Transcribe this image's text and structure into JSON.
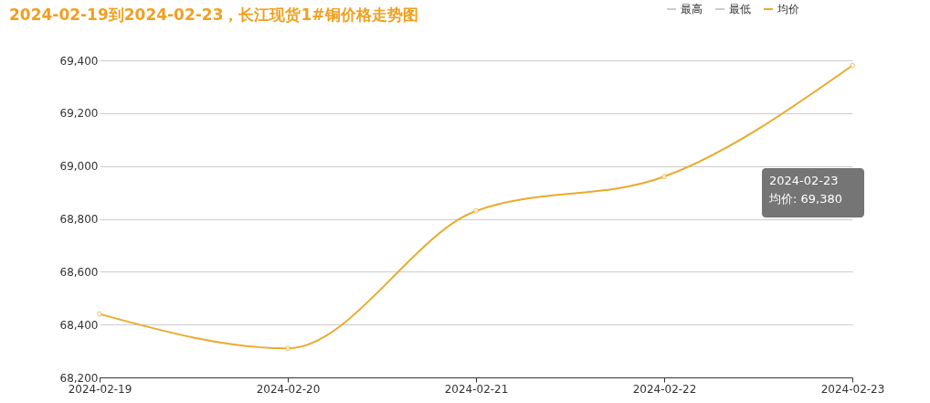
{
  "chart_data": {
    "type": "line",
    "title": "2024-02-19到2024-02-23，长江现货1#铜价格走势图",
    "categories": [
      "2024-02-19",
      "2024-02-20",
      "2024-02-21",
      "2024-02-22",
      "2024-02-23"
    ],
    "series": [
      {
        "name": "最高",
        "color": "#cccccc",
        "values": [
          null,
          null,
          null,
          null,
          null
        ]
      },
      {
        "name": "最低",
        "color": "#cccccc",
        "values": [
          null,
          null,
          null,
          null,
          null
        ]
      },
      {
        "name": "均价",
        "color": "#eaaa2c",
        "values": [
          68440,
          68310,
          68830,
          68960,
          69380
        ]
      }
    ],
    "ylim": [
      68200,
      69400
    ],
    "yticks": [
      {
        "value": 68200,
        "label": "68,200"
      },
      {
        "value": 68400,
        "label": "68,400"
      },
      {
        "value": 68600,
        "label": "68,600"
      },
      {
        "value": 68800,
        "label": "68,800"
      },
      {
        "value": 69000,
        "label": "69,000"
      },
      {
        "value": 69200,
        "label": "69,200"
      },
      {
        "value": 69400,
        "label": "69,400"
      }
    ],
    "grid": "y",
    "legend": "top right",
    "marker": "circle",
    "line_style": "solid",
    "annotations": [
      "2024-02-23\n均价: 69,380"
    ]
  }
}
